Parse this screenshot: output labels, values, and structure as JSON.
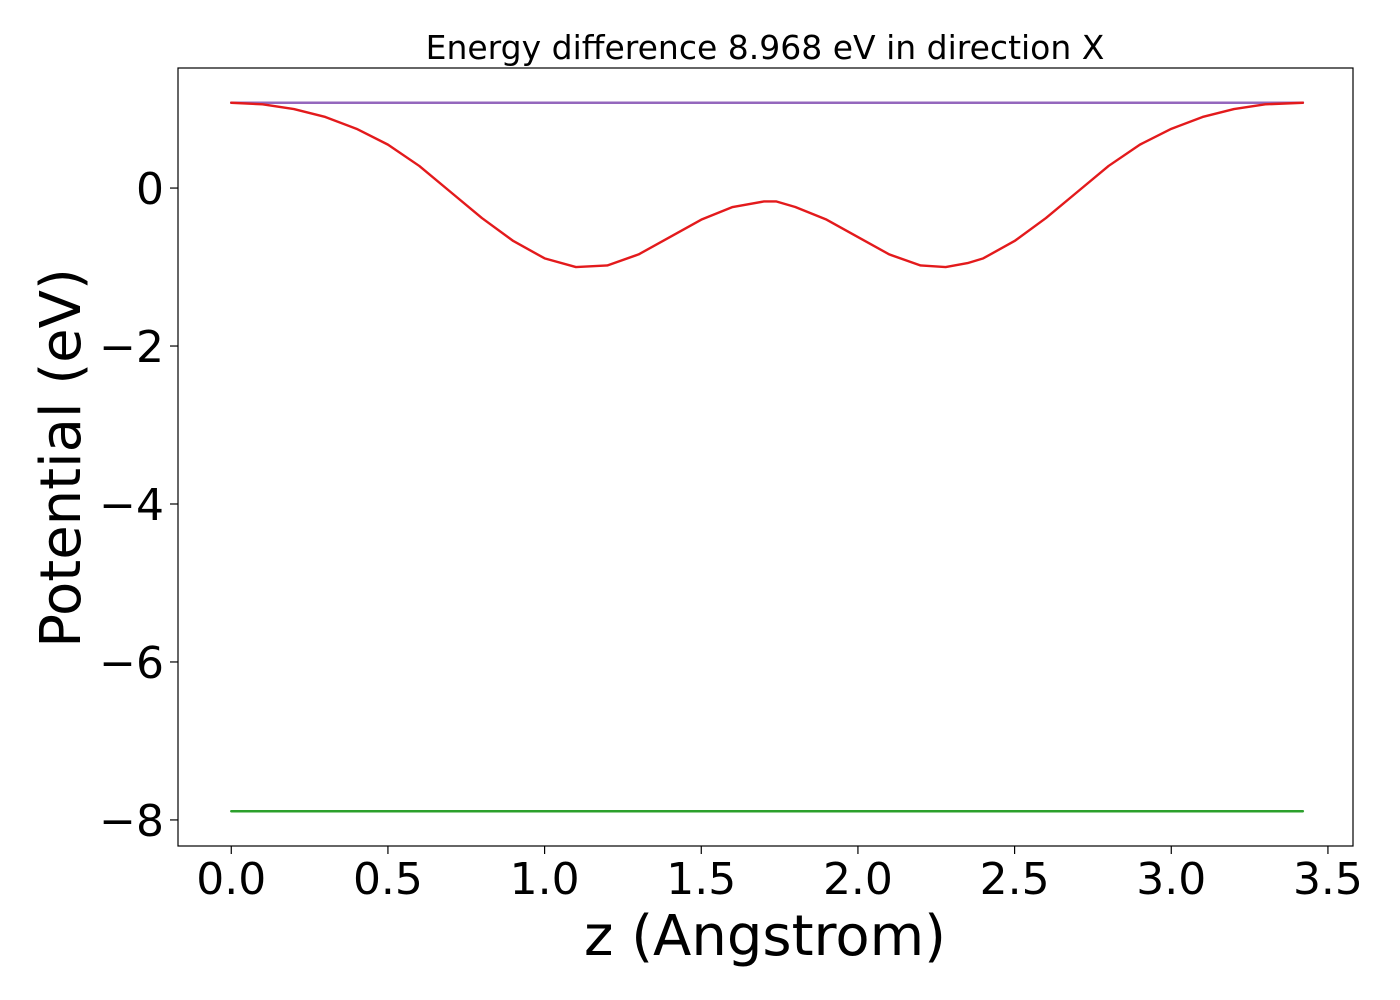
{
  "chart_data": {
    "type": "line",
    "title": "Energy difference 8.968 eV in direction X",
    "xlabel": "z (Angstrom)",
    "ylabel": "Potential (eV)",
    "xlim": [
      -0.17,
      3.58
    ],
    "ylim": [
      -8.33,
      1.52
    ],
    "x_ticks": [
      0.0,
      0.5,
      1.0,
      1.5,
      2.0,
      2.5,
      3.0,
      3.5
    ],
    "x_tick_labels": [
      "0.0",
      "0.5",
      "1.0",
      "1.5",
      "2.0",
      "2.5",
      "3.0",
      "3.5"
    ],
    "y_ticks": [
      0,
      -2,
      -4,
      -6,
      -8
    ],
    "y_tick_labels": [
      "0",
      "−2",
      "−4",
      "−6",
      "−8"
    ],
    "grid": false,
    "legend": "none",
    "series": [
      {
        "color": "#1f77b4",
        "x": [
          0.0,
          3.42
        ],
        "y": [
          1.08,
          1.08
        ]
      },
      {
        "color": "#2ca02c",
        "x": [
          0.0,
          3.42
        ],
        "y": [
          -7.89,
          -7.89
        ]
      },
      {
        "color": "#9467bd",
        "x": [
          0.0,
          3.42
        ],
        "y": [
          1.08,
          1.08
        ]
      },
      {
        "color": "#e31a1c",
        "x": [
          0.0,
          0.1,
          0.2,
          0.3,
          0.4,
          0.5,
          0.6,
          0.7,
          0.8,
          0.9,
          1.0,
          1.1,
          1.2,
          1.3,
          1.4,
          1.5,
          1.6,
          1.7,
          1.74,
          1.8,
          1.9,
          2.0,
          2.1,
          2.2,
          2.28,
          2.35,
          2.4,
          2.5,
          2.6,
          2.7,
          2.8,
          2.9,
          3.0,
          3.1,
          3.2,
          3.3,
          3.42
        ],
        "y": [
          1.08,
          1.06,
          1.0,
          0.9,
          0.75,
          0.55,
          0.28,
          -0.05,
          -0.38,
          -0.67,
          -0.89,
          -1.0,
          -0.98,
          -0.84,
          -0.62,
          -0.4,
          -0.24,
          -0.17,
          -0.17,
          -0.24,
          -0.4,
          -0.62,
          -0.84,
          -0.98,
          -1.0,
          -0.95,
          -0.89,
          -0.67,
          -0.38,
          -0.05,
          0.28,
          0.55,
          0.75,
          0.9,
          1.0,
          1.06,
          1.08
        ]
      }
    ]
  }
}
